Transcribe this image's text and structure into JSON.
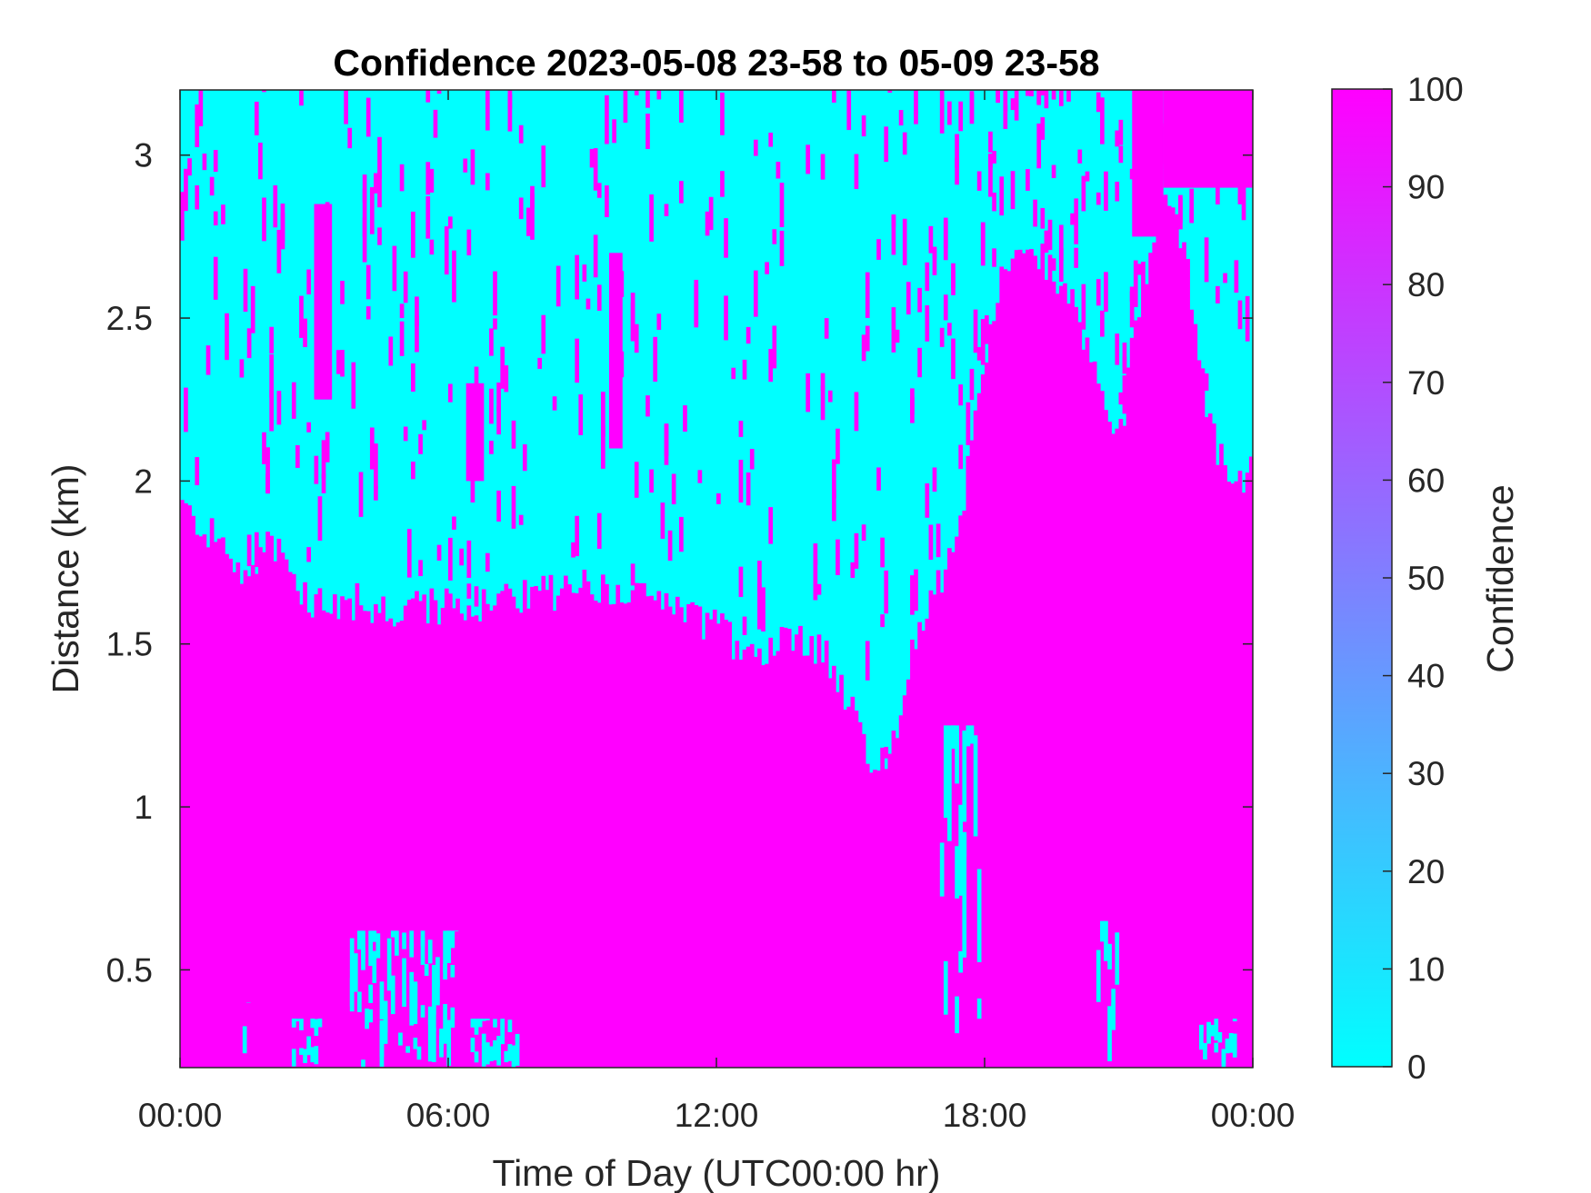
{
  "chart_data": {
    "type": "heatmap",
    "title": "Confidence 2023-05-08 23-58 to 05-09 23-58",
    "xlabel": "Time of Day (UTC00:00 hr)",
    "ylabel": "Distance (km)",
    "x_unit": "hours",
    "xlim": [
      0,
      24
    ],
    "ylim": [
      0.2,
      3.2
    ],
    "x_ticks": [
      {
        "value": 0,
        "label": "00:00"
      },
      {
        "value": 6,
        "label": "06:00"
      },
      {
        "value": 12,
        "label": "12:00"
      },
      {
        "value": 18,
        "label": "18:00"
      },
      {
        "value": 24,
        "label": "00:00"
      }
    ],
    "y_ticks": [
      {
        "value": 0.5,
        "label": "0.5"
      },
      {
        "value": 1,
        "label": "1"
      },
      {
        "value": 1.5,
        "label": "1.5"
      },
      {
        "value": 2,
        "label": "2"
      },
      {
        "value": 2.5,
        "label": "2.5"
      },
      {
        "value": 3,
        "label": "3"
      }
    ],
    "colorbar": {
      "label": "Confidence",
      "range": [
        0,
        100
      ],
      "ticks": [
        "0",
        "10",
        "20",
        "30",
        "40",
        "50",
        "60",
        "70",
        "80",
        "90",
        "100"
      ],
      "colormap": "cool",
      "low_color": "#00ffff",
      "high_color": "#ff00ff"
    },
    "low_confidence_top_boundary": {
      "description_values": "upper limit (km) of the high-confidence (100) region per hour; above it confidence is 0",
      "hours": [
        0,
        0.5,
        1,
        1.5,
        2,
        2.5,
        3,
        3.5,
        4,
        5,
        6,
        7,
        8,
        9,
        10,
        11,
        12,
        12.5,
        13,
        13.5,
        14,
        14.5,
        15,
        15.5,
        16,
        16.5,
        17,
        17.5,
        18,
        18.5,
        19,
        19.5,
        20,
        20.5,
        21,
        21.5,
        22,
        22.5,
        23,
        23.5,
        24
      ],
      "km": [
        1.93,
        1.85,
        1.8,
        1.68,
        1.85,
        1.7,
        1.62,
        1.62,
        1.63,
        1.6,
        1.62,
        1.62,
        1.65,
        1.68,
        1.65,
        1.6,
        1.55,
        1.5,
        1.48,
        1.55,
        1.52,
        1.45,
        1.3,
        1.15,
        1.18,
        1.55,
        1.7,
        1.9,
        2.4,
        2.68,
        2.72,
        2.65,
        2.55,
        2.3,
        2.1,
        2.6,
        2.85,
        2.7,
        2.2,
        1.95,
        2.05
      ]
    },
    "upper_patches": [
      {
        "hours": [
          22,
          24
        ],
        "from_km": 2.9,
        "to_km": 3.2
      },
      {
        "hours": [
          21.3,
          22
        ],
        "from_km": 2.75,
        "to_km": 3.2
      },
      {
        "hours": [
          3,
          3.4
        ],
        "from_km": 2.25,
        "to_km": 2.85
      },
      {
        "hours": [
          9.6,
          9.9
        ],
        "from_km": 2.1,
        "to_km": 2.7
      },
      {
        "hours": [
          6.4,
          6.8
        ],
        "from_km": 2.0,
        "to_km": 2.3
      },
      {
        "hours": [
          20.0,
          20.5
        ],
        "from_km": 1.8,
        "to_km": 2.3
      }
    ],
    "lower_cyan_regions": [
      {
        "hours": [
          1.4,
          1.6
        ],
        "from_km": 0.2,
        "to_km": 0.4
      },
      {
        "hours": [
          2.5,
          3.2
        ],
        "from_km": 0.2,
        "to_km": 0.35
      },
      {
        "hours": [
          3.8,
          6.2
        ],
        "from_km": 0.2,
        "to_km": 0.62
      },
      {
        "hours": [
          6.5,
          7.6
        ],
        "from_km": 0.2,
        "to_km": 0.35
      },
      {
        "hours": [
          17.0,
          17.9
        ],
        "from_km": 0.2,
        "to_km": 1.25
      },
      {
        "hours": [
          20.5,
          21.0
        ],
        "from_km": 0.2,
        "to_km": 0.65
      },
      {
        "hours": [
          22.8,
          23.6
        ],
        "from_km": 0.2,
        "to_km": 0.35
      }
    ]
  }
}
